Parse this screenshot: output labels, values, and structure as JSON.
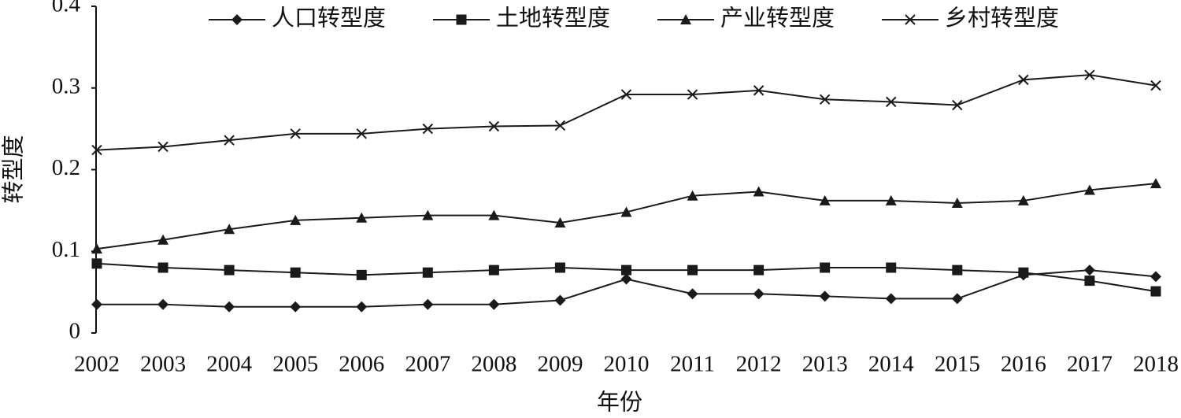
{
  "chart_data": {
    "type": "line",
    "x_label": "年份",
    "y_label": "转型度",
    "x": [
      "2002",
      "2003",
      "2004",
      "2005",
      "2006",
      "2007",
      "2008",
      "2009",
      "2010",
      "2011",
      "2012",
      "2013",
      "2014",
      "2015",
      "2016",
      "2017",
      "2018"
    ],
    "ylim": [
      0,
      0.4
    ],
    "yticks": [
      0,
      0.1,
      0.2,
      0.3,
      0.4
    ],
    "grid": false,
    "legend": "top",
    "series": [
      {
        "name": "人口转型度",
        "color": "#1a1a1a",
        "marker": "diamond",
        "values": [
          0.035,
          0.035,
          0.032,
          0.032,
          0.032,
          0.035,
          0.035,
          0.04,
          0.066,
          0.048,
          0.048,
          0.045,
          0.042,
          0.042,
          0.071,
          0.077,
          0.069
        ]
      },
      {
        "name": "土地转型度",
        "color": "#1a1a1a",
        "marker": "square",
        "values": [
          0.085,
          0.08,
          0.077,
          0.074,
          0.071,
          0.074,
          0.077,
          0.08,
          0.077,
          0.077,
          0.077,
          0.08,
          0.08,
          0.077,
          0.074,
          0.064,
          0.051
        ]
      },
      {
        "name": "产业转型度",
        "color": "#1a1a1a",
        "marker": "triangle",
        "values": [
          0.103,
          0.114,
          0.127,
          0.138,
          0.141,
          0.144,
          0.144,
          0.135,
          0.148,
          0.168,
          0.173,
          0.162,
          0.162,
          0.159,
          0.162,
          0.175,
          0.183
        ]
      },
      {
        "name": "乡村转型度",
        "color": "#1a1a1a",
        "marker": "x",
        "values": [
          0.224,
          0.228,
          0.236,
          0.244,
          0.244,
          0.25,
          0.253,
          0.254,
          0.292,
          0.292,
          0.297,
          0.286,
          0.283,
          0.279,
          0.31,
          0.316,
          0.303
        ]
      }
    ]
  }
}
